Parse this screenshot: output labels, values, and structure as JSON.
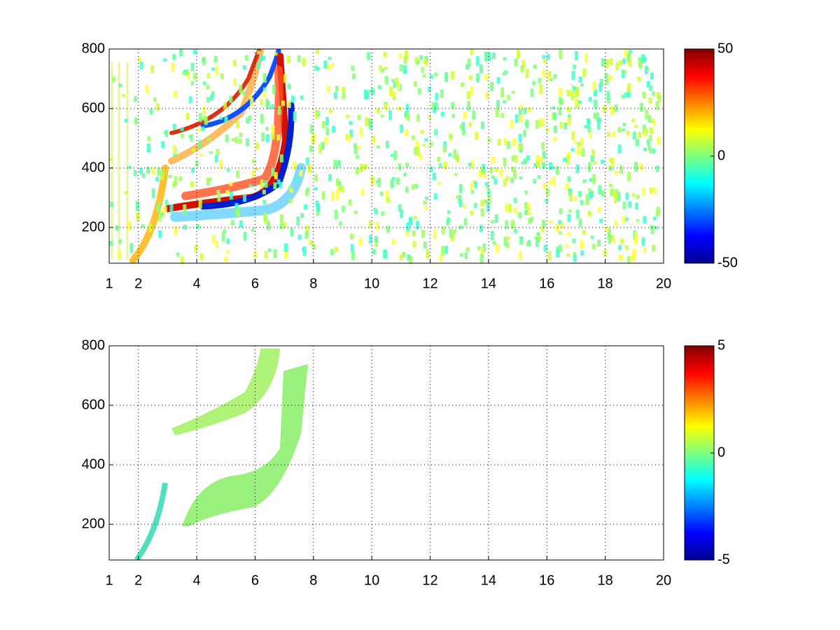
{
  "chart_data": [
    {
      "type": "heatmap",
      "colormap": "jet",
      "grid": true,
      "xlim": [
        1,
        20
      ],
      "xticks": [
        1,
        2,
        4,
        6,
        8,
        10,
        12,
        14,
        16,
        18,
        20
      ],
      "ylim": [
        80,
        800
      ],
      "yticks": [
        200,
        400,
        600,
        800
      ],
      "clim": [
        -50,
        50
      ],
      "cticks": [
        -50,
        0,
        50
      ]
    },
    {
      "type": "heatmap",
      "colormap": "jet",
      "grid": true,
      "xlim": [
        1,
        20
      ],
      "xticks": [
        1,
        2,
        4,
        6,
        8,
        10,
        12,
        14,
        16,
        18,
        20
      ],
      "ylim": [
        80,
        800
      ],
      "yticks": [
        200,
        400,
        600,
        800
      ],
      "clim": [
        -5,
        5
      ],
      "cticks": [
        -5,
        0,
        5
      ]
    }
  ]
}
